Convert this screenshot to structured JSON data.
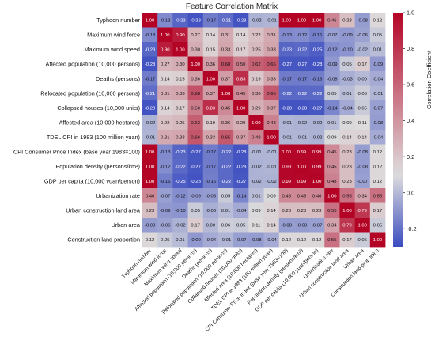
{
  "chart_data": {
    "type": "heatmap",
    "title": "Feature Correlation Matrix",
    "colorbar_label": "Correlation Coefficient",
    "colorbar_ticks": [
      1.0,
      0.8,
      0.6,
      0.4,
      0.2,
      0.0,
      -0.2
    ],
    "vmin": -0.3,
    "vmax": 1.0,
    "colormap": [
      "#3b4cc0",
      "#dddddd",
      "#b40426"
    ],
    "variables": [
      "Typhoon number",
      "Maximum wind force",
      "Maximum wind speed",
      "Affected population (10,000 persons)",
      "Deaths (persons)",
      "Relocated population (10,000 persons)",
      "Collapsed houses (10,000 units)",
      "Affected area (10,000 hectares)",
      "TDEL CPI in 1983 (100 million yuan)",
      "CPI Consumer Price Index (base year 1983=100)",
      "Population density (persons/km²)",
      "GDP per capita (10,000 yuan/person)",
      "Urbanization rate",
      "Urban construction land area",
      "Urban area",
      "Construction land proportion"
    ],
    "matrix": [
      [
        1.0,
        -0.13,
        -0.23,
        -0.28,
        -0.17,
        -0.21,
        -0.28,
        -0.02,
        -0.01,
        1.0,
        1.0,
        1.0,
        0.46,
        0.23,
        -0.08,
        0.12
      ],
      [
        -0.13,
        1.0,
        0.9,
        0.27,
        0.14,
        0.31,
        0.14,
        0.22,
        0.31,
        -0.13,
        -0.12,
        -0.16,
        -0.07,
        -0.09,
        -0.06,
        0.05
      ],
      [
        -0.23,
        0.9,
        1.0,
        0.3,
        0.15,
        0.33,
        0.17,
        0.25,
        0.33,
        -0.23,
        -0.22,
        -0.25,
        -0.12,
        -0.1,
        -0.02,
        0.01
      ],
      [
        -0.28,
        0.27,
        0.3,
        1.0,
        0.36,
        0.68,
        0.5,
        0.62,
        0.66,
        -0.27,
        -0.27,
        -0.28,
        -0.09,
        0.05,
        0.17,
        -0.09
      ],
      [
        -0.17,
        0.14,
        0.15,
        0.36,
        1.0,
        0.37,
        0.83,
        0.19,
        0.33,
        -0.17,
        -0.17,
        -0.16,
        -0.08,
        -0.03,
        0.0,
        -0.04
      ],
      [
        -0.21,
        0.31,
        0.33,
        0.68,
        0.37,
        1.0,
        0.45,
        0.36,
        0.65,
        -0.22,
        -0.22,
        -0.22,
        0.05,
        0.01,
        0.06,
        -0.01
      ],
      [
        -0.28,
        0.14,
        0.17,
        0.5,
        0.83,
        0.45,
        1.0,
        0.29,
        0.37,
        -0.28,
        -0.28,
        -0.27,
        -0.14,
        -0.04,
        0.05,
        -0.07
      ],
      [
        -0.02,
        0.22,
        0.25,
        0.62,
        0.19,
        0.36,
        0.29,
        1.0,
        0.48,
        -0.01,
        -0.02,
        -0.02,
        0.01,
        0.09,
        0.11,
        -0.08
      ],
      [
        -0.01,
        0.31,
        0.33,
        0.66,
        0.33,
        0.65,
        0.37,
        0.48,
        1.0,
        -0.01,
        -0.01,
        -0.02,
        0.09,
        0.14,
        0.14,
        -0.04
      ],
      [
        1.0,
        -0.13,
        -0.23,
        -0.27,
        -0.17,
        -0.22,
        -0.28,
        -0.01,
        -0.01,
        1.0,
        0.99,
        0.99,
        0.45,
        0.23,
        -0.08,
        0.12
      ],
      [
        1.0,
        -0.12,
        -0.22,
        -0.27,
        -0.17,
        -0.22,
        -0.28,
        -0.02,
        -0.01,
        0.99,
        1.0,
        0.99,
        0.45,
        0.23,
        -0.08,
        0.12
      ],
      [
        1.0,
        -0.16,
        -0.25,
        -0.28,
        -0.16,
        -0.22,
        -0.27,
        -0.02,
        -0.02,
        0.99,
        0.99,
        1.0,
        0.48,
        0.23,
        -0.07,
        0.12
      ],
      [
        0.46,
        -0.07,
        -0.12,
        -0.09,
        -0.08,
        0.05,
        -0.14,
        0.01,
        0.09,
        0.45,
        0.45,
        0.46,
        1.0,
        0.55,
        0.34,
        0.55
      ],
      [
        0.23,
        -0.09,
        -0.1,
        0.05,
        -0.03,
        0.01,
        -0.04,
        0.09,
        0.14,
        0.23,
        0.23,
        0.23,
        0.55,
        1.0,
        0.79,
        0.17
      ],
      [
        -0.08,
        -0.06,
        -0.02,
        0.17,
        0.0,
        0.06,
        0.05,
        0.11,
        0.14,
        -0.08,
        -0.08,
        -0.07,
        0.34,
        0.79,
        1.0,
        0.05
      ],
      [
        0.12,
        0.05,
        0.01,
        -0.09,
        -0.04,
        -0.01,
        -0.07,
        -0.08,
        -0.04,
        0.12,
        0.12,
        0.12,
        0.55,
        0.17,
        0.05,
        1.0
      ]
    ]
  }
}
